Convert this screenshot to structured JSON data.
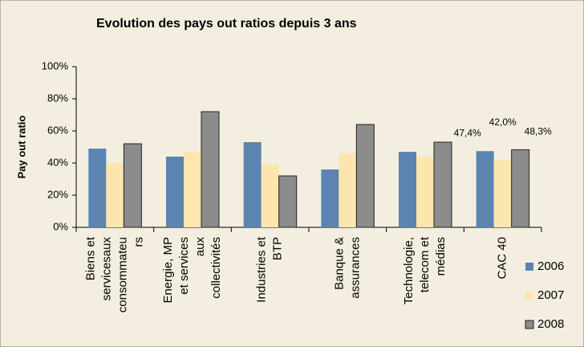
{
  "chart_data": {
    "type": "bar",
    "title": "Evolution des pays out ratios depuis 3 ans",
    "y_label": "Pay out ratio",
    "categories": [
      [
        "Biens et",
        "servicesaux",
        "consommateu",
        "rs"
      ],
      [
        "Energie, MP",
        "et services",
        "aux",
        "collectivités"
      ],
      [
        "Industries et",
        "BTP"
      ],
      [
        "Banque &",
        "assurances"
      ],
      [
        "Technologie,",
        "telecom et",
        "médias"
      ],
      [
        "CAC 40"
      ]
    ],
    "series": [
      {
        "name": "2006",
        "color": "#5b84b1",
        "values": [
          49,
          44,
          53,
          36,
          47,
          47.4
        ],
        "value_labels": [
          null,
          null,
          null,
          null,
          null,
          "47,4%"
        ]
      },
      {
        "name": "2007",
        "color": "#fde6ad",
        "values": [
          40,
          47,
          39,
          46,
          44,
          42.0
        ],
        "value_labels": [
          null,
          null,
          null,
          null,
          null,
          "42,0%"
        ]
      },
      {
        "name": "2008",
        "color": "#8c8c8c",
        "values": [
          52,
          72,
          32,
          64,
          53,
          48.3
        ],
        "value_labels": [
          null,
          null,
          null,
          null,
          null,
          "48,3%"
        ]
      }
    ],
    "ylim": [
      0,
      100
    ],
    "yticks": [
      {
        "value": 0,
        "label": "0%"
      },
      {
        "value": 20,
        "label": "20%"
      },
      {
        "value": 40,
        "label": "40%"
      },
      {
        "value": 60,
        "label": "60%"
      },
      {
        "value": 80,
        "label": "80%"
      },
      {
        "value": 100,
        "label": "100%"
      }
    ],
    "legend": "right"
  }
}
